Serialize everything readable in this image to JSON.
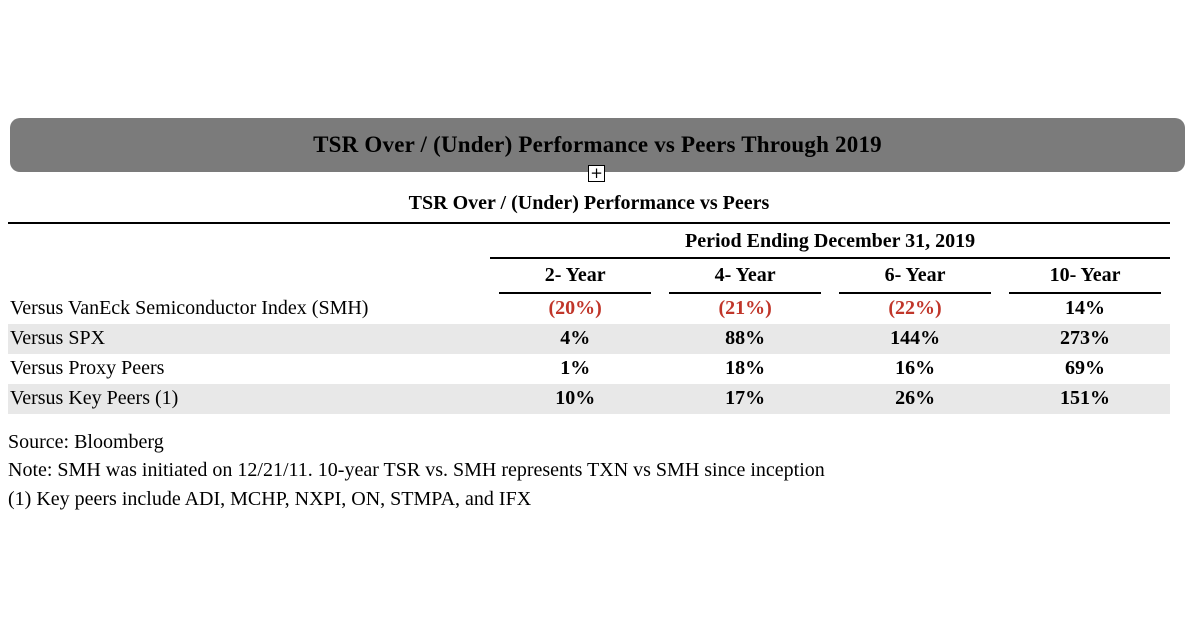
{
  "banner": {
    "title": "TSR Over / (Under) Performance vs Peers Through 2019"
  },
  "expand_control": {
    "glyph": "+"
  },
  "table": {
    "title": "TSR Over / (Under) Performance vs Peers",
    "period_header": "Period Ending December 31, 2019",
    "columns": [
      "2- Year",
      "4- Year",
      "6- Year",
      "10- Year"
    ],
    "rows": [
      {
        "label": "Versus VanEck Semiconductor Index (SMH)",
        "values": [
          "(20%)",
          "(21%)",
          "(22%)",
          "14%"
        ]
      },
      {
        "label": "Versus SPX",
        "values": [
          "4%",
          "88%",
          "144%",
          "273%"
        ]
      },
      {
        "label": "Versus Proxy Peers",
        "values": [
          "1%",
          "18%",
          "16%",
          "69%"
        ]
      },
      {
        "label": "Versus Key Peers (1)",
        "values": [
          "10%",
          "17%",
          "26%",
          "151%"
        ]
      }
    ]
  },
  "footnotes": {
    "source": "Source: Bloomberg",
    "note": "Note: SMH was initiated on 12/21/11. 10-year TSR vs. SMH represents TXN vs SMH since inception",
    "key_peers": "(1) Key peers include ADI, MCHP, NXPI, ON, STMPA, and IFX"
  },
  "colors": {
    "banner_background": "#7b7b7b",
    "row_shading": "#e8e8e8",
    "negative_value": "#c0362a"
  }
}
